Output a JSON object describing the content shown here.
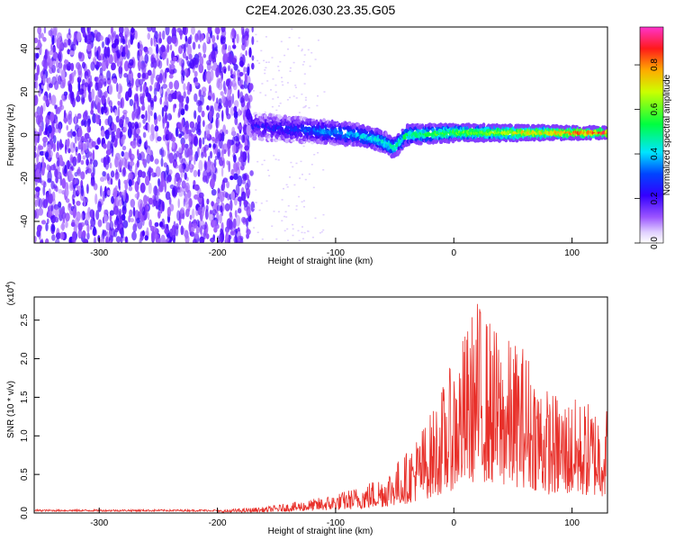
{
  "figure": {
    "title": "C2E4.2026.030.23.35.G05"
  },
  "chart_data": [
    {
      "type": "heatmap",
      "title": "C2E4.2026.030.23.35.G05",
      "xlabel": "Height of straight line (km)",
      "ylabel": "Frequency (Hz)",
      "xlim": [
        -355,
        130
      ],
      "ylim": [
        -50,
        50
      ],
      "xticks": [
        -300,
        -200,
        -100,
        0,
        100
      ],
      "yticks": [
        -40,
        -20,
        0,
        20,
        40
      ],
      "grid": false,
      "colorbar": {
        "label": "Normalized spectral amplitude",
        "ticks": [
          0.0,
          0.2,
          0.4,
          0.6,
          0.8
        ],
        "range": [
          0,
          0.97
        ],
        "colormap": [
          "#ffffff",
          "#d0b0ff",
          "#7a00ff",
          "#0000ff",
          "#00ffff",
          "#00ff00",
          "#ffff00",
          "#ff0000",
          "#ff00ff"
        ]
      },
      "features": {
        "noise_region_x": [
          -355,
          -170
        ],
        "signal_center_hz": [
          {
            "x": -170,
            "y": 4
          },
          {
            "x": -120,
            "y": 2
          },
          {
            "x": -80,
            "y": 0
          },
          {
            "x": -60,
            "y": -3
          },
          {
            "x": -50,
            "y": -6
          },
          {
            "x": -40,
            "y": 0
          },
          {
            "x": 0,
            "y": 1
          },
          {
            "x": 50,
            "y": 1
          },
          {
            "x": 130,
            "y": 1
          }
        ]
      }
    },
    {
      "type": "line",
      "xlabel": "Height of straight line (km)",
      "ylabel": "SNR (10 * v/v)",
      "yscale_label": "(x10^4)",
      "scale_exponent": "4",
      "xlim": [
        -355,
        130
      ],
      "ylim": [
        0,
        2.8
      ],
      "xticks": [
        -300,
        -200,
        -100,
        0,
        100
      ],
      "yticks": [
        0.0,
        0.5,
        1.0,
        1.5,
        2.0,
        2.5
      ],
      "color": "#e8302a",
      "series_envelope": {
        "x": [
          -355,
          -250,
          -200,
          -160,
          -120,
          -100,
          -80,
          -60,
          -40,
          -20,
          0,
          20,
          40,
          60,
          80,
          100,
          130
        ],
        "y": [
          0.03,
          0.03,
          0.04,
          0.08,
          0.18,
          0.25,
          0.35,
          0.5,
          0.8,
          1.3,
          2.0,
          2.8,
          2.3,
          2.2,
          1.6,
          1.5,
          1.4
        ]
      }
    }
  ]
}
